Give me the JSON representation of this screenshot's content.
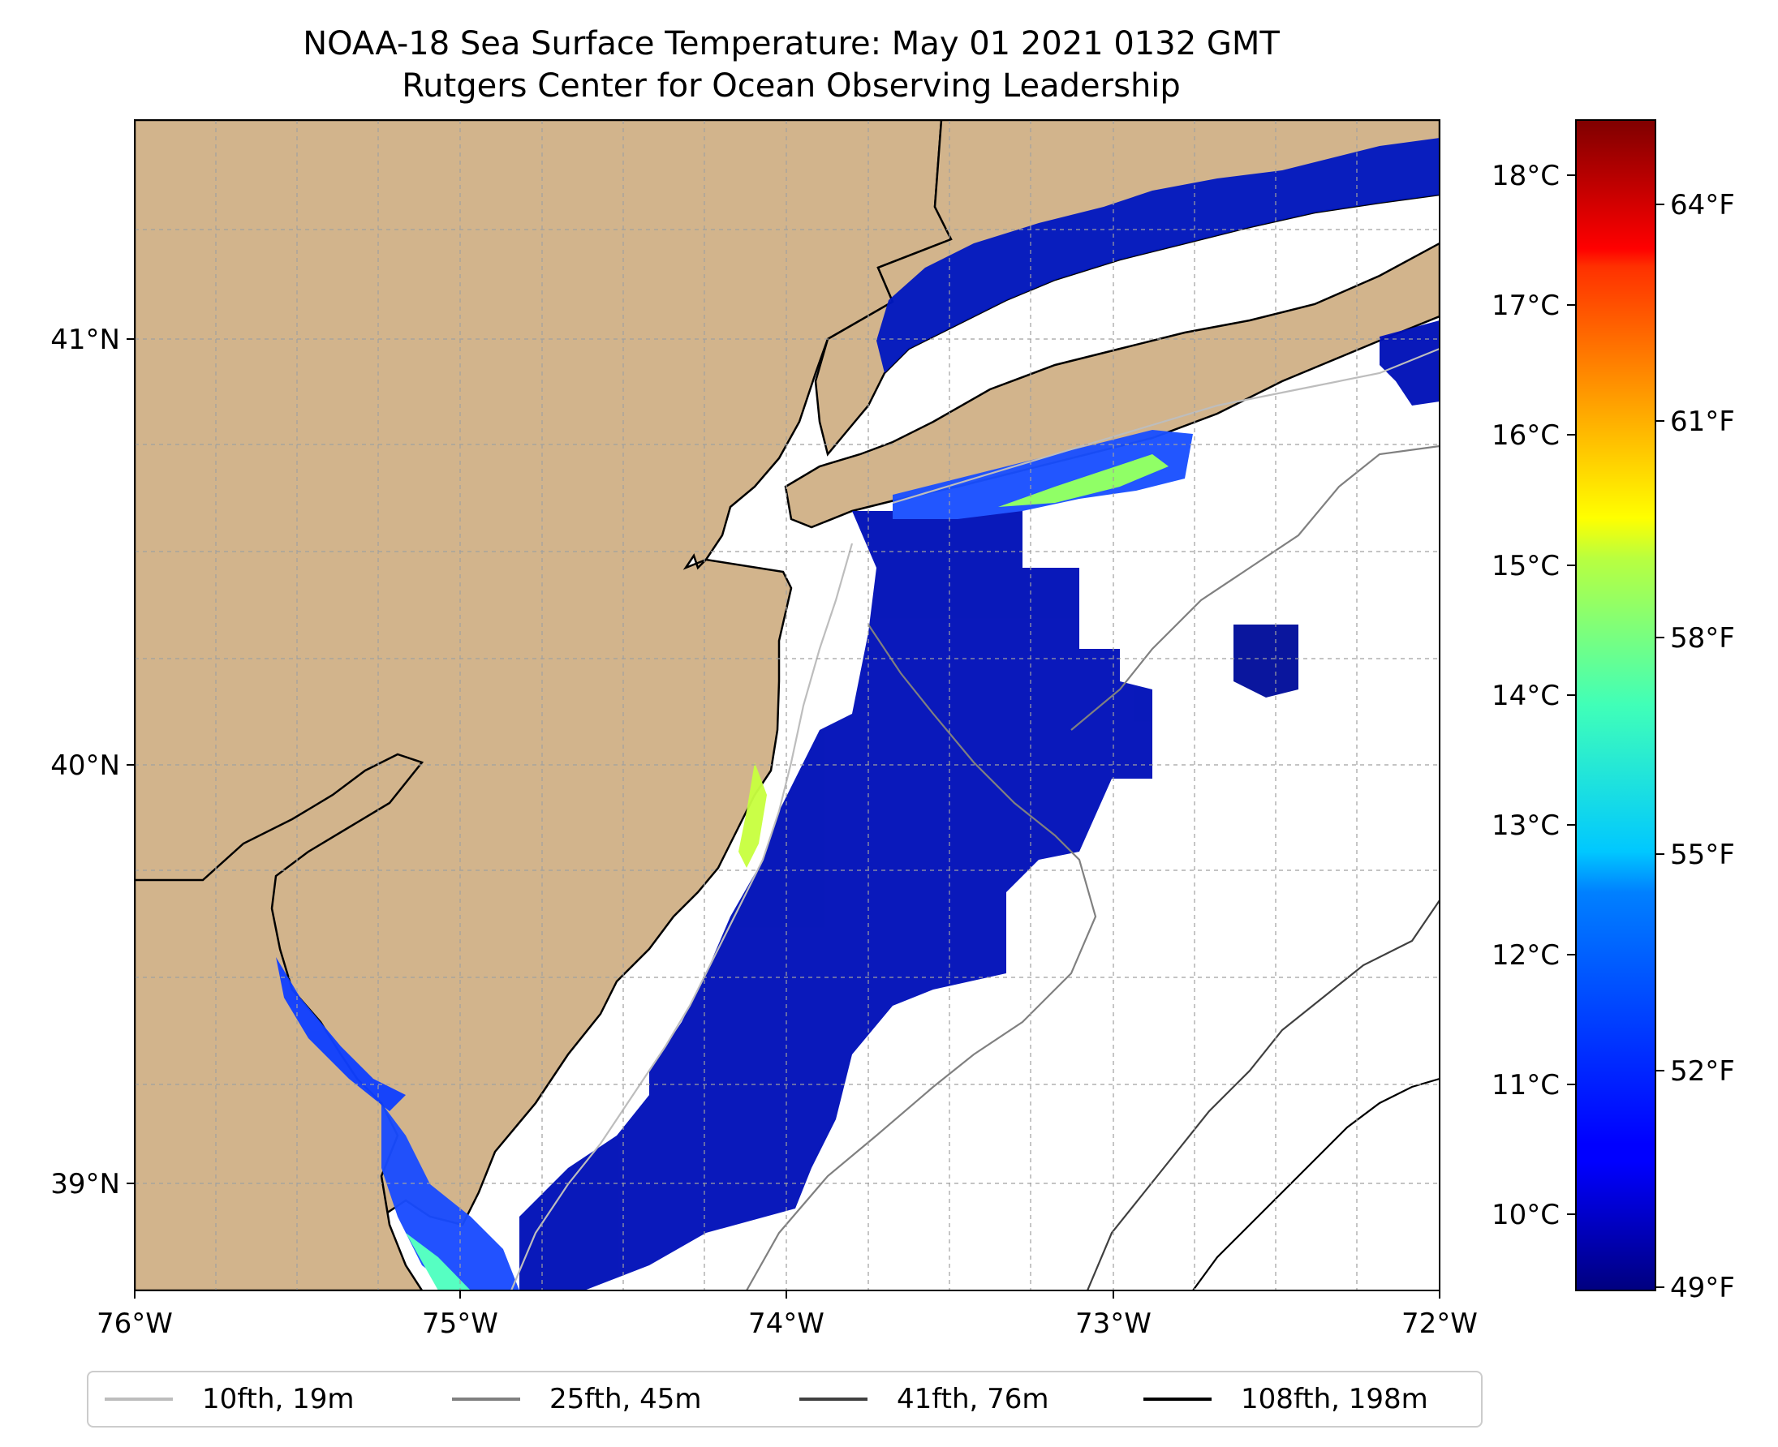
{
  "title": {
    "line1": "NOAA-18 Sea Surface Temperature: May 01 2021 0132 GMT",
    "line2": "Rutgers Center for Ocean Observing Leadership"
  },
  "map": {
    "lon_ticks": [
      "76°W",
      "75°W",
      "74°W",
      "73°W",
      "72°W"
    ],
    "lat_ticks": [
      "41°N",
      "40°N",
      "39°N"
    ],
    "lon_range": [
      -76.0,
      -72.0
    ],
    "lat_range": [
      38.75,
      41.55
    ],
    "gridlines": true,
    "land_color": "#d2b48c",
    "ocean_color": "#ffffff"
  },
  "colorbar": {
    "colormap": "jet",
    "celsius_ticks": [
      "18°C",
      "17°C",
      "16°C",
      "15°C",
      "14°C",
      "13°C",
      "12°C",
      "11°C",
      "10°C"
    ],
    "fahrenheit_ticks": [
      "64°F",
      "61°F",
      "58°F",
      "55°F",
      "52°F",
      "49°F"
    ],
    "min_f": 49,
    "max_f": 65
  },
  "legend": {
    "position": "bottom",
    "entries": [
      {
        "label": "10fth, 19m",
        "color": "#bdbdbd"
      },
      {
        "label": "25fth, 45m",
        "color": "#808080"
      },
      {
        "label": "41fth, 76m",
        "color": "#404040"
      },
      {
        "label": "108fth, 198m",
        "color": "#000000"
      }
    ]
  }
}
